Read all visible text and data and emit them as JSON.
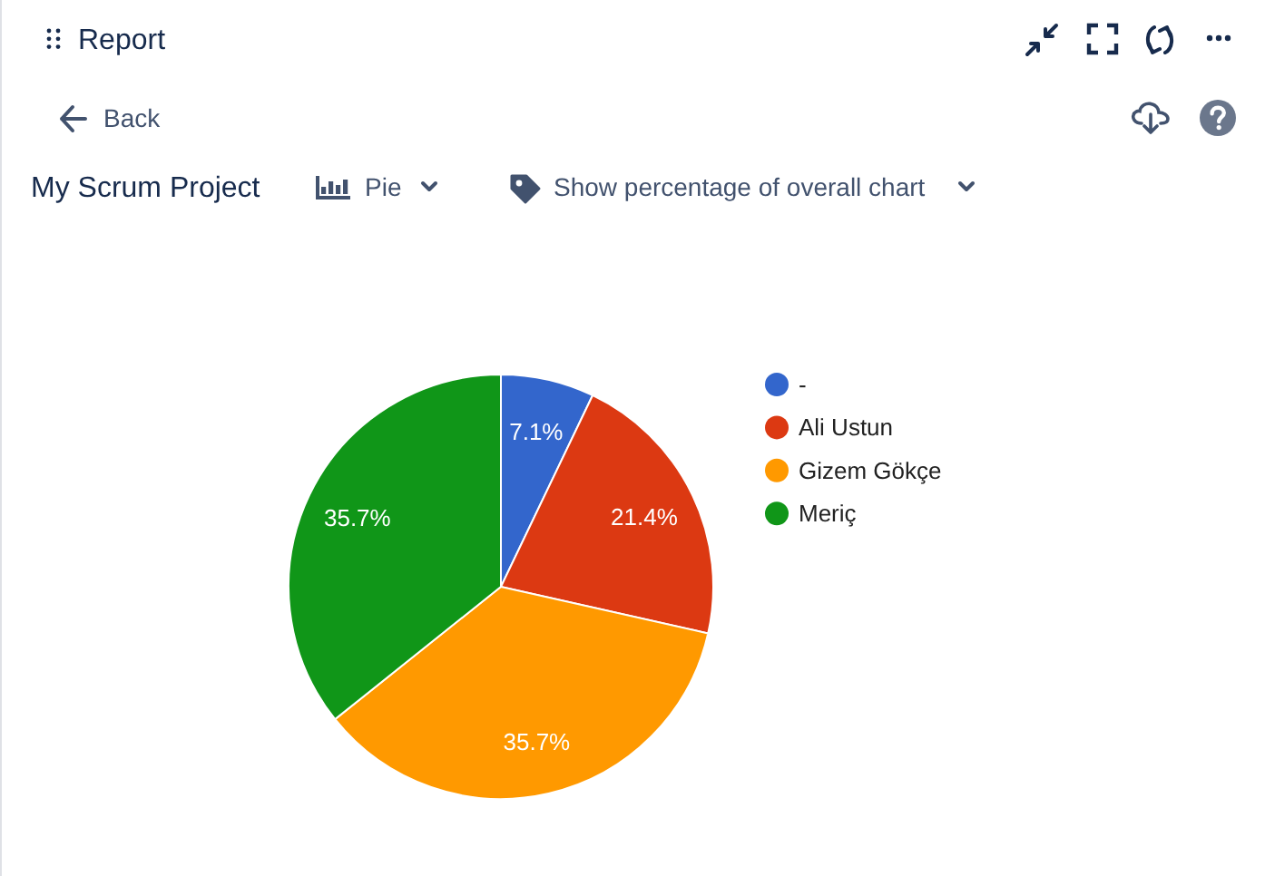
{
  "chart_data": {
    "type": "pie",
    "title": "Report",
    "subtitle": "My Scrum Project",
    "categories": [
      "-",
      "Ali Ustun",
      "Gizem Gökçe",
      "Meriç"
    ],
    "values": [
      7.1,
      21.4,
      35.7,
      35.7
    ],
    "colors": [
      "#3366cc",
      "#dc3912",
      "#ff9900",
      "#109618"
    ],
    "value_labels": [
      "7.1%",
      "21.4%",
      "35.7%",
      "35.7%"
    ],
    "legend": "right",
    "annotations": [
      "Back",
      "Pie",
      "Show percentage of overall chart"
    ]
  }
}
